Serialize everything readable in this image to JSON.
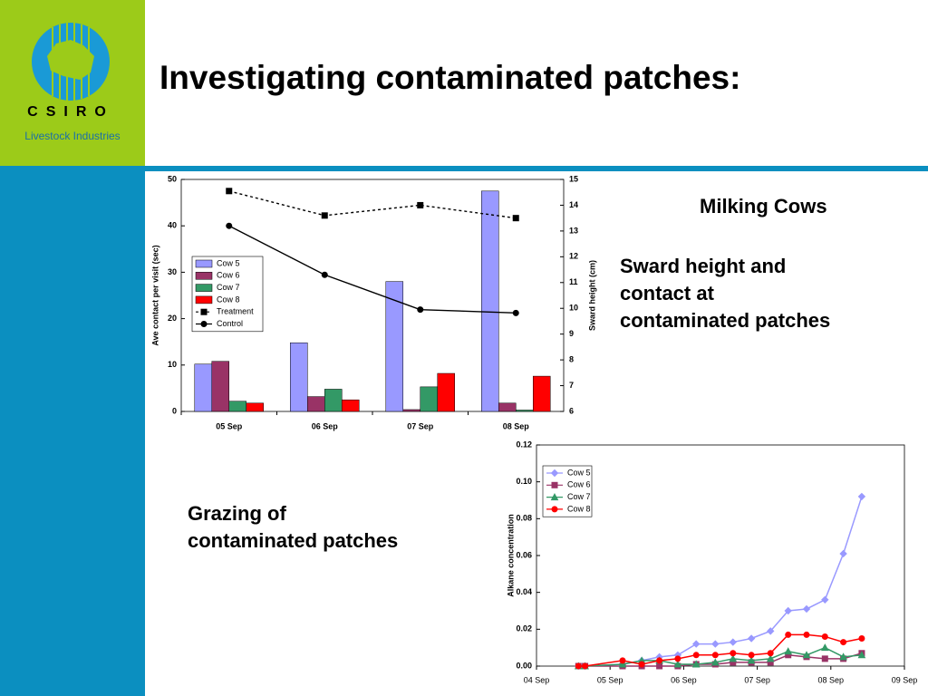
{
  "slide": {
    "title": "Investigating contaminated patches:",
    "logo_text": "CSIRO",
    "logo_subtitle": "Livestock Industries",
    "heading": "Milking Cows",
    "caption_1": [
      "Sward height and",
      "contact at",
      "contaminated patches"
    ],
    "caption_2": [
      "Grazing of",
      "contaminated patches"
    ]
  },
  "chart_data": [
    {
      "type": "bar",
      "categories": [
        "05 Sep",
        "06 Sep",
        "07 Sep",
        "08 Sep"
      ],
      "ylabel": "Ave contact per visit (sec)",
      "y2label": "Sward height (cm)",
      "ylim": [
        0,
        50
      ],
      "yticks": [
        0,
        10,
        20,
        30,
        40,
        50
      ],
      "y2lim": [
        6,
        15
      ],
      "y2ticks": [
        6,
        7,
        8,
        9,
        10,
        11,
        12,
        13,
        14,
        15
      ],
      "series": [
        {
          "name": "Cow 5",
          "color": "#9999ff",
          "values": [
            10.2,
            14.8,
            28,
            47.5
          ]
        },
        {
          "name": "Cow 6",
          "color": "#993366",
          "values": [
            10.8,
            3.2,
            0.4,
            1.8
          ]
        },
        {
          "name": "Cow 7",
          "color": "#339966",
          "values": [
            2.2,
            4.8,
            5.3,
            0.3
          ]
        },
        {
          "name": "Cow 8",
          "color": "#ff0000",
          "values": [
            1.8,
            2.5,
            8.2,
            7.6
          ]
        },
        {
          "name": "Treatment",
          "type": "line",
          "axis": "y2",
          "dashed": true,
          "marker": "square",
          "color": "#000000",
          "values": [
            14.55,
            13.6,
            14.0,
            13.5
          ]
        },
        {
          "name": "Control",
          "type": "line",
          "axis": "y2",
          "marker": "circle",
          "color": "#000000",
          "values": [
            13.2,
            11.3,
            9.95,
            9.82
          ]
        }
      ]
    },
    {
      "type": "line",
      "ylabel": "Alkane concentration",
      "x": [
        0.57,
        0.66,
        1.17,
        1.43,
        1.67,
        1.92,
        2.17,
        2.43,
        2.67,
        2.92,
        3.18,
        3.42,
        3.67,
        3.92,
        4.17,
        4.42
      ],
      "xlim": [
        0,
        5
      ],
      "xticks": [
        {
          "value": 0,
          "label": "04 Sep"
        },
        {
          "value": 1,
          "label": "05 Sep"
        },
        {
          "value": 2,
          "label": "06 Sep"
        },
        {
          "value": 3,
          "label": "07 Sep"
        },
        {
          "value": 4,
          "label": "08 Sep"
        },
        {
          "value": 5,
          "label": "09 Sep"
        }
      ],
      "ylim": [
        0,
        0.12
      ],
      "yticks": [
        {
          "value": 0,
          "label": "0.00"
        },
        {
          "value": 0.02,
          "label": "0.02"
        },
        {
          "value": 0.04,
          "label": "0.04"
        },
        {
          "value": 0.06,
          "label": "0.06"
        },
        {
          "value": 0.08,
          "label": "0.08"
        },
        {
          "value": 0.1,
          "label": "0.10"
        },
        {
          "value": 0.12,
          "label": "0.12"
        }
      ],
      "series": [
        {
          "name": "Cow 5",
          "color": "#9999ff",
          "marker": "diamond",
          "values": [
            0,
            0,
            0.001,
            0.003,
            0.005,
            0.006,
            0.012,
            0.012,
            0.013,
            0.015,
            0.019,
            0.03,
            0.031,
            0.036,
            0.061,
            0.092
          ]
        },
        {
          "name": "Cow 6",
          "color": "#993366",
          "marker": "square",
          "values": [
            0,
            0,
            0,
            0,
            0,
            0,
            0.001,
            0.001,
            0.002,
            0.002,
            0.002,
            0.006,
            0.005,
            0.004,
            0.004,
            0.007
          ]
        },
        {
          "name": "Cow 7",
          "color": "#339966",
          "marker": "triangle",
          "values": [
            0,
            0,
            0.001,
            0.003,
            0.003,
            0.001,
            0.001,
            0.002,
            0.004,
            0.003,
            0.004,
            0.008,
            0.006,
            0.01,
            0.005,
            0.006
          ]
        },
        {
          "name": "Cow 8",
          "color": "#ff0000",
          "marker": "circle",
          "values": [
            0,
            0,
            0.003,
            0.001,
            0.003,
            0.004,
            0.006,
            0.006,
            0.007,
            0.006,
            0.007,
            0.017,
            0.017,
            0.016,
            0.013,
            0.015
          ]
        }
      ]
    }
  ]
}
